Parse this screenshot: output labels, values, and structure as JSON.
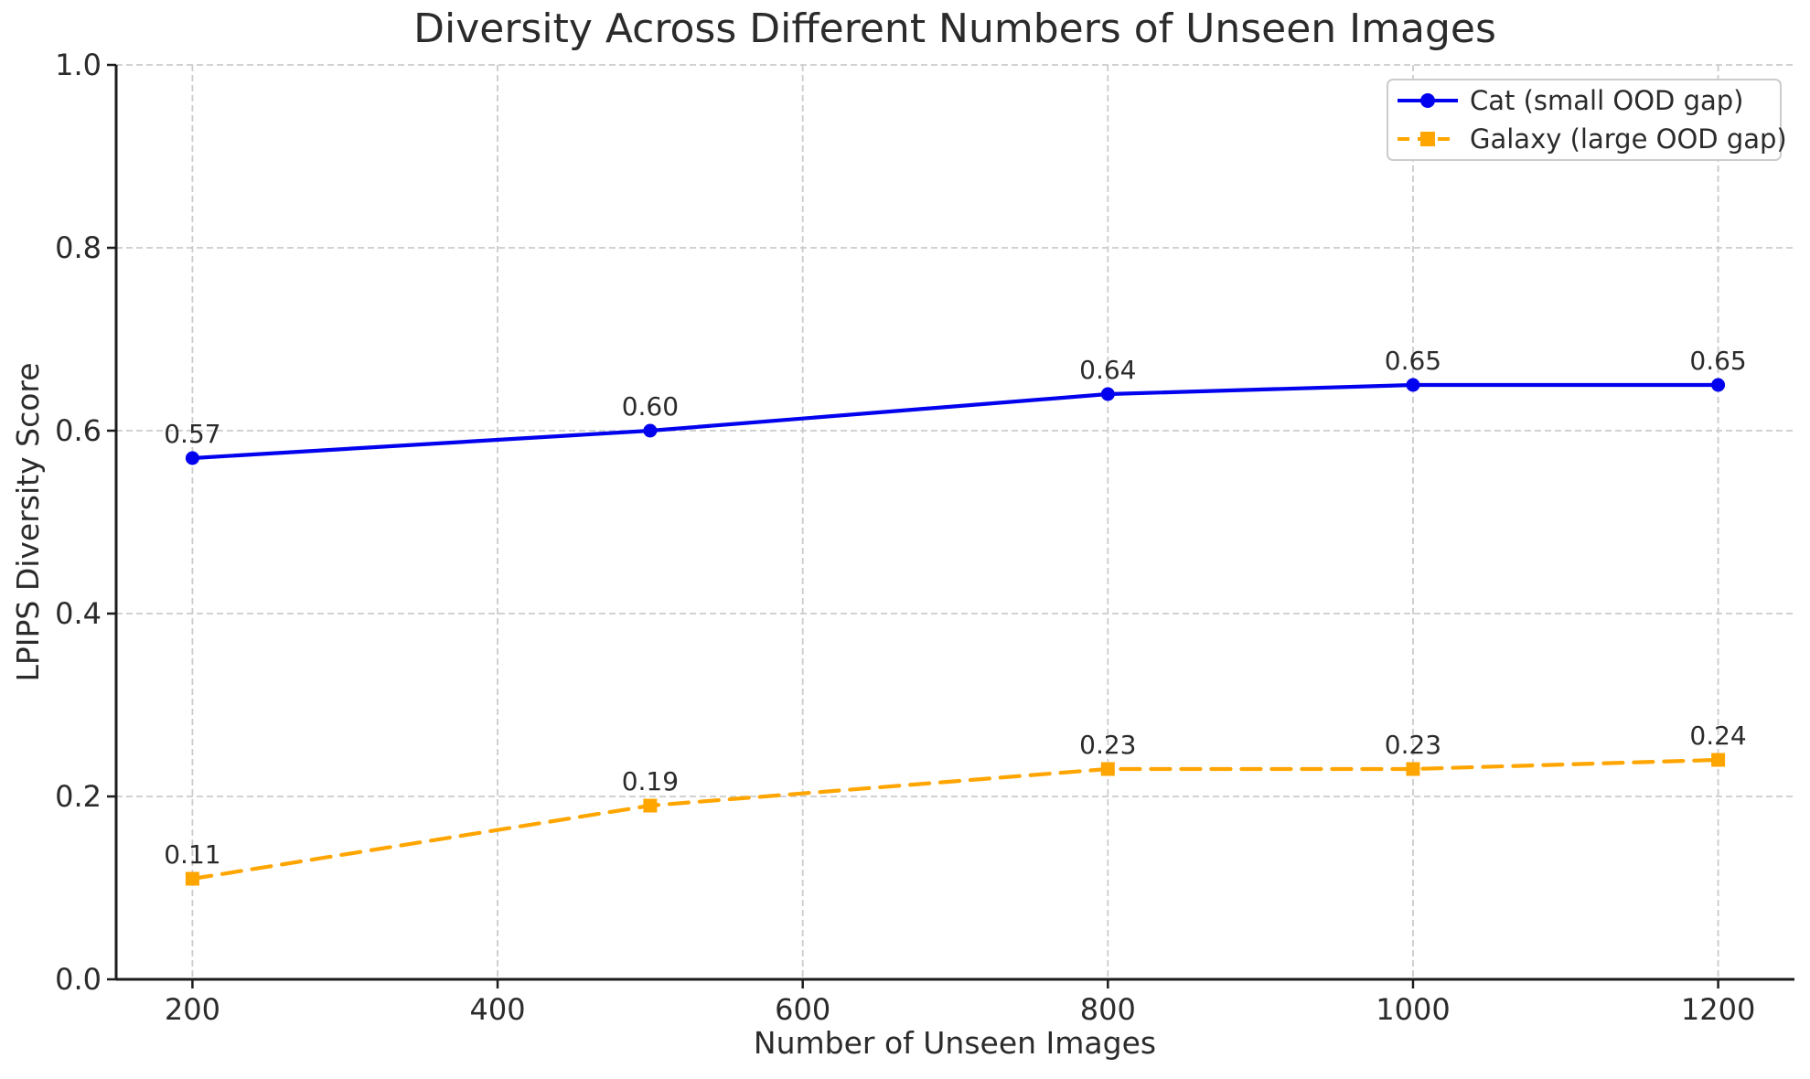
{
  "chart_data": {
    "type": "line",
    "title": "Diversity Across Different Numbers of Unseen Images",
    "xlabel": "Number of Unseen Images",
    "ylabel": "LPIPS Diversity Score",
    "x": [
      200,
      500,
      800,
      1000,
      1200
    ],
    "series": [
      {
        "name": "Cat (small OOD gap)",
        "values": [
          0.57,
          0.6,
          0.64,
          0.65,
          0.65
        ],
        "point_labels": [
          "0.57",
          "0.60",
          "0.64",
          "0.65",
          "0.65"
        ],
        "color": "#0202ee",
        "marker": "circle",
        "line_style": "solid"
      },
      {
        "name": "Galaxy (large OOD gap)",
        "values": [
          0.11,
          0.19,
          0.23,
          0.23,
          0.24
        ],
        "point_labels": [
          "0.11",
          "0.19",
          "0.23",
          "0.23",
          "0.24"
        ],
        "color": "#ffa500",
        "marker": "square",
        "line_style": "dashed"
      }
    ],
    "xticks": [
      "200",
      "400",
      "600",
      "800",
      "1000",
      "1200"
    ],
    "yticks": [
      "0.0",
      "0.2",
      "0.4",
      "0.6",
      "0.8",
      "1.0"
    ],
    "xlim": [
      150,
      1250
    ],
    "ylim": [
      0,
      1
    ],
    "grid": true,
    "legend_position": "top-right",
    "colors": {
      "grid": "#cbcbcb",
      "axis": "#1c1c1c",
      "text": "#2b2b2b",
      "legend_border": "#cccccc",
      "legend_bg": "#ffffff"
    }
  }
}
